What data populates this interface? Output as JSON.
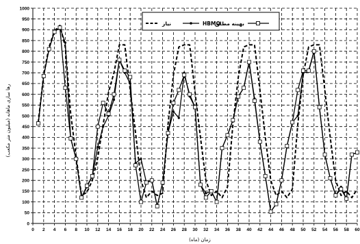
{
  "chart_data": {
    "type": "line",
    "title": "",
    "xlabel": "زمان (ماه)",
    "ylabel": "رها سازی ماهانه (میلیون متر مکعب)",
    "xlim": [
      0,
      60
    ],
    "ylim": [
      0,
      1000
    ],
    "x_ticks": [
      0,
      2,
      4,
      6,
      8,
      10,
      12,
      14,
      16,
      18,
      20,
      22,
      24,
      26,
      28,
      30,
      32,
      34,
      36,
      38,
      40,
      42,
      44,
      46,
      48,
      50,
      52,
      54,
      56,
      58,
      60
    ],
    "y_ticks": [
      0,
      50,
      100,
      150,
      200,
      250,
      300,
      350,
      400,
      450,
      500,
      550,
      600,
      650,
      700,
      750,
      800,
      850,
      900,
      950,
      1000
    ],
    "grid": "dashed",
    "legend_position": "top-right",
    "x": [
      1,
      2,
      3,
      4,
      5,
      6,
      7,
      8,
      9,
      10,
      11,
      12,
      13,
      14,
      15,
      16,
      17,
      18,
      19,
      20,
      21,
      22,
      23,
      24,
      25,
      26,
      27,
      28,
      29,
      30,
      31,
      32,
      33,
      34,
      35,
      36,
      37,
      38,
      39,
      40,
      41,
      42,
      43,
      44,
      45,
      46,
      47,
      48,
      49,
      50,
      51,
      52,
      53,
      54,
      55,
      56,
      57,
      58,
      59,
      60
    ],
    "series": [
      {
        "name": "نیاز",
        "style": "dashed",
        "color": "#000000",
        "values": [
          470,
          690,
          820,
          895,
          920,
          820,
          510,
          310,
          130,
          145,
          200,
          305,
          460,
          610,
          700,
          830,
          830,
          620,
          420,
          200,
          120,
          150,
          130,
          140,
          460,
          690,
          820,
          830,
          830,
          610,
          400,
          200,
          130,
          150,
          120,
          170,
          460,
          680,
          820,
          830,
          830,
          620,
          400,
          200,
          130,
          150,
          120,
          160,
          460,
          690,
          820,
          830,
          830,
          620,
          400,
          200,
          130,
          150,
          120,
          160
        ]
      },
      {
        "name": "HBMO",
        "style": "solid",
        "marker": "dot",
        "color": "#000000",
        "values": [
          465,
          685,
          810,
          895,
          910,
          840,
          395,
          300,
          120,
          170,
          220,
          355,
          450,
          500,
          575,
          760,
          700,
          650,
          280,
          300,
          190,
          200,
          80,
          190,
          420,
          520,
          490,
          700,
          590,
          540,
          180,
          140,
          150,
          100,
          350,
          410,
          480,
          590,
          630,
          750,
          580,
          380,
          220,
          55,
          90,
          200,
          360,
          470,
          500,
          700,
          705,
          800,
          540,
          320,
          210,
          130,
          170,
          115,
          320,
          330
        ]
      },
      {
        "name": "بهینه مطلق",
        "style": "solid",
        "marker": "square",
        "color": "#000000",
        "values": [
          465,
          685,
          810,
          890,
          910,
          630,
          395,
          300,
          120,
          175,
          220,
          450,
          560,
          510,
          600,
          760,
          710,
          680,
          270,
          100,
          190,
          200,
          80,
          190,
          420,
          560,
          620,
          690,
          600,
          540,
          180,
          120,
          150,
          100,
          350,
          410,
          480,
          590,
          630,
          750,
          570,
          380,
          220,
          55,
          90,
          200,
          360,
          470,
          620,
          710,
          710,
          800,
          540,
          320,
          210,
          130,
          160,
          115,
          320,
          330
        ]
      }
    ]
  }
}
